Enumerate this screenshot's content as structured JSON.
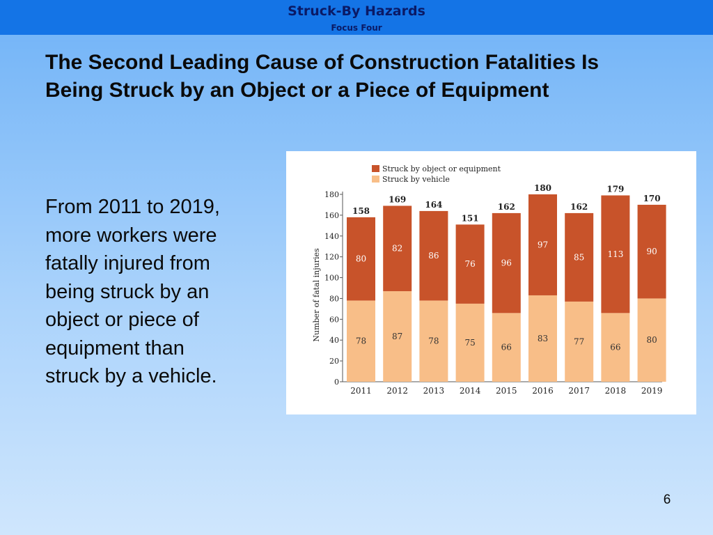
{
  "banner": {
    "title": "Struck-By Hazards",
    "subtitle": "Focus Four"
  },
  "heading": {
    "lines": [
      "The Second Leading Cause of Construction Fatalities Is",
      "Being Struck by an Object or a Piece of Equipment"
    ]
  },
  "body": {
    "lines": [
      "From 2011 to 2019,",
      "more workers were",
      "fatally injured from",
      "being struck by an",
      "object or piece of",
      "equipment than",
      "struck by a vehicle."
    ]
  },
  "page_number": "6",
  "chart_data": {
    "type": "bar",
    "stacked": true,
    "categories": [
      "2011",
      "2012",
      "2013",
      "2014",
      "2015",
      "2016",
      "2017",
      "2018",
      "2019"
    ],
    "series": [
      {
        "name": "Struck by vehicle",
        "values": [
          78,
          87,
          78,
          75,
          66,
          83,
          77,
          66,
          80
        ],
        "color": "#f8be88"
      },
      {
        "name": "Struck by object or equipment",
        "values": [
          80,
          82,
          86,
          76,
          96,
          97,
          85,
          113,
          90
        ],
        "color": "#c8532a"
      }
    ],
    "totals": [
      158,
      169,
      164,
      151,
      162,
      180,
      162,
      179,
      170
    ],
    "ylabel": "Number of fatal injuries",
    "ylim": [
      0,
      180
    ],
    "yticks": [
      0,
      20,
      40,
      60,
      80,
      100,
      120,
      140,
      160,
      180
    ],
    "legend_position": "top-left",
    "grid": false
  }
}
